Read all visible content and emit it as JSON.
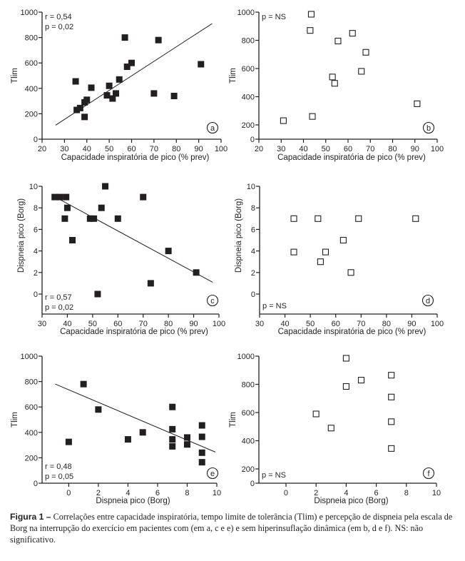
{
  "chart_data": [
    {
      "panel": "a",
      "type": "scatter",
      "marker": "filled-square",
      "xlabel": "Capacidade inspiratória de pico (% prev)",
      "ylabel": "Tlim",
      "xlim": [
        20,
        100
      ],
      "ylim": [
        0,
        1000
      ],
      "xticks": [
        "20",
        "30",
        "40",
        "50",
        "60",
        "70",
        "80",
        "90",
        "100"
      ],
      "yticks": [
        "0",
        "200",
        "400",
        "600",
        "800",
        "1000"
      ],
      "stats": [
        "r = 0,54",
        "p = 0,02"
      ],
      "trendline": {
        "x": [
          26,
          96
        ],
        "y": [
          110,
          910
        ]
      },
      "x": [
        35,
        35.5,
        37,
        39,
        39,
        40,
        42,
        49,
        50,
        51.5,
        53,
        54.5,
        57,
        58,
        60,
        70,
        72,
        79,
        91
      ],
      "y": [
        455,
        230,
        245,
        175,
        290,
        310,
        405,
        345,
        420,
        320,
        360,
        470,
        800,
        570,
        600,
        360,
        780,
        340,
        590
      ]
    },
    {
      "panel": "b",
      "type": "scatter",
      "marker": "open-square",
      "xlabel": "Capacidade inspiratória de pico (% prev)",
      "ylabel": "Tlim",
      "xlim": [
        20,
        100
      ],
      "ylim": [
        0,
        1000
      ],
      "xticks": [
        "20",
        "30",
        "40",
        "50",
        "60",
        "70",
        "80",
        "90",
        "100"
      ],
      "yticks": [
        "0",
        "200",
        "400",
        "600",
        "800",
        "1000"
      ],
      "stats": [
        "p = NS"
      ],
      "x": [
        31,
        43,
        43.5,
        44,
        53,
        54,
        55.5,
        62,
        66,
        68,
        91
      ],
      "y": [
        230,
        870,
        985,
        260,
        540,
        495,
        795,
        850,
        580,
        715,
        350
      ]
    },
    {
      "panel": "c",
      "type": "scatter",
      "marker": "filled-square",
      "xlabel": "Capacidade inspiratória de pico (% prev)",
      "ylabel": "Dispneia pico (Borg)",
      "xlim": [
        30,
        100
      ],
      "ylim": [
        -1.8,
        10
      ],
      "xticks": [
        "30",
        "40",
        "50",
        "60",
        "70",
        "80",
        "90",
        "100"
      ],
      "yticks": [
        "0",
        "2",
        "4",
        "6",
        "8",
        "10"
      ],
      "stats": [
        "r = 0,57",
        "p = 0,02"
      ],
      "trendline": {
        "x": [
          36,
          97.5
        ],
        "y": [
          8.9,
          1.1
        ]
      },
      "x": [
        35,
        37,
        39.5,
        39,
        40,
        42,
        49,
        50.5,
        52,
        53.5,
        55,
        60,
        70,
        73,
        80,
        91
      ],
      "y": [
        9,
        9,
        9,
        7,
        8,
        5,
        7,
        7,
        0,
        8,
        10,
        7,
        9,
        1,
        4,
        2
      ]
    },
    {
      "panel": "d",
      "type": "scatter",
      "marker": "open-square",
      "xlabel": "Capacidade inspiratória de pico (% prev)",
      "ylabel": "Dispneia pico (Borg)",
      "xlim": [
        30,
        100
      ],
      "ylim": [
        -1.8,
        10
      ],
      "xticks": [
        "30",
        "40",
        "50",
        "60",
        "70",
        "80",
        "90",
        "100"
      ],
      "yticks": [
        "0",
        "2",
        "4",
        "6",
        "8",
        "10"
      ],
      "stats": [
        "p = NS"
      ],
      "x": [
        43.5,
        43.5,
        53,
        54,
        56,
        63,
        66,
        69,
        91.5
      ],
      "y": [
        7,
        3.9,
        7,
        3,
        3.9,
        5,
        2,
        7,
        7
      ]
    },
    {
      "panel": "e",
      "type": "scatter",
      "marker": "filled-square",
      "xlabel": "Dispneia pico (Borg)",
      "ylabel": "Tlim",
      "xlim": [
        -1.8,
        10
      ],
      "ylim": [
        0,
        1000
      ],
      "xticks": [
        "0",
        "2",
        "4",
        "6",
        "8",
        "10"
      ],
      "yticks": [
        "0",
        "200",
        "400",
        "600",
        "800",
        "1000"
      ],
      "stats": [
        "r = 0,48",
        "p = 0,05"
      ],
      "trendline": {
        "x": [
          -0.9,
          9.9
        ],
        "y": [
          780,
          245
        ]
      },
      "x": [
        0,
        1,
        2,
        4,
        5,
        7,
        7,
        7,
        7,
        8,
        8,
        9,
        9,
        9,
        9
      ],
      "y": [
        325,
        780,
        580,
        345,
        400,
        600,
        425,
        345,
        290,
        360,
        305,
        455,
        365,
        240,
        165
      ]
    },
    {
      "panel": "f",
      "type": "scatter",
      "marker": "open-square",
      "xlabel": "Dispneia pico (Borg)",
      "ylabel": "Tlim",
      "xlim": [
        -1.8,
        10
      ],
      "ylim": [
        0,
        1000
      ],
      "xticks": [
        "0",
        "2",
        "4",
        "6",
        "8",
        "10"
      ],
      "yticks": [
        "0",
        "200",
        "400",
        "600",
        "800",
        "1000"
      ],
      "stats": [
        "p = NS"
      ],
      "x": [
        2,
        3,
        4,
        4,
        5,
        7,
        7,
        7,
        7
      ],
      "y": [
        590,
        490,
        985,
        785,
        830,
        865,
        710,
        535,
        345
      ]
    }
  ],
  "caption": {
    "figure_label": "Figura 1 –",
    "text": " Correlações entre capacidade inspiratória, tempo limite de tolerância (Tlim) e percepção de dispneia pela escala de Borg na interrupção do exercício em pacientes com (em a, c e e) e sem hiperinsuflação dinâmica (em b, d e f). NS: não significativo."
  }
}
